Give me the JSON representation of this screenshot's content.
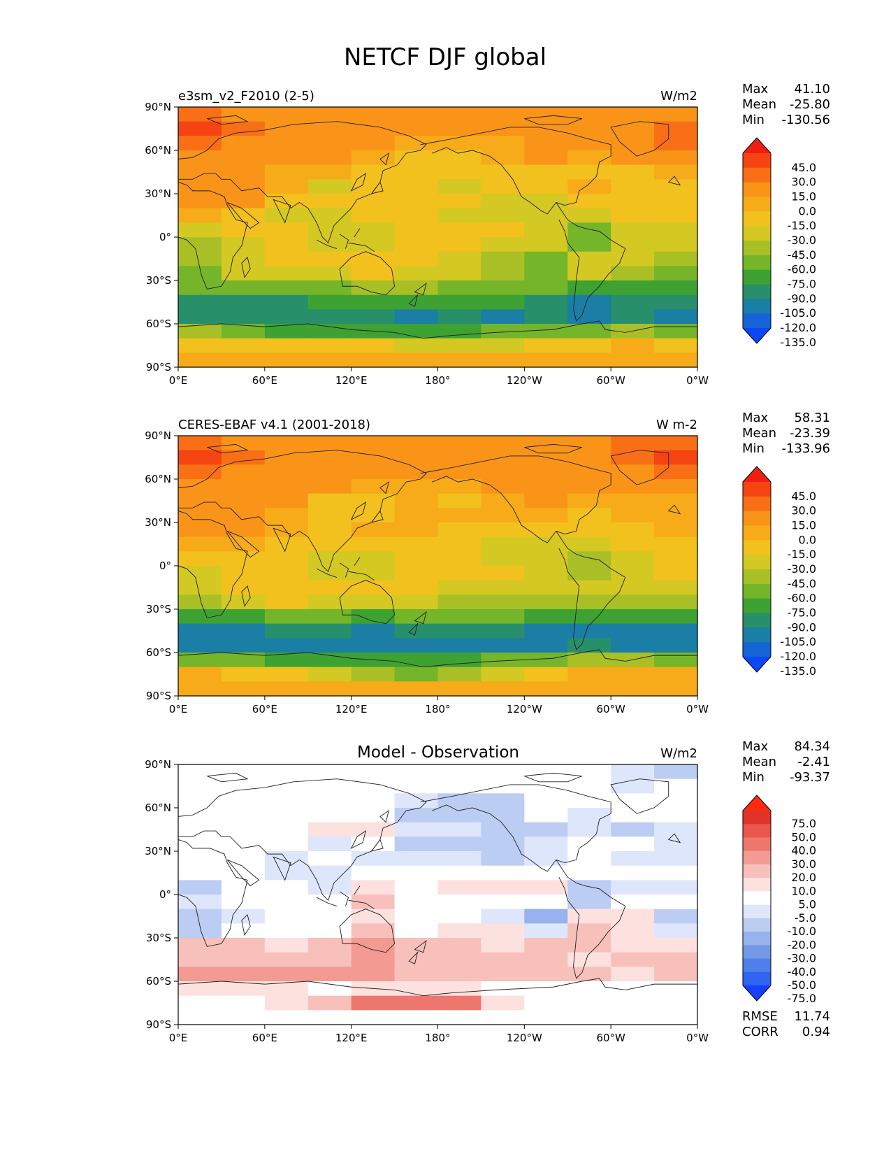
{
  "figure_title": "NETCF DJF global",
  "colors": {
    "seq": [
      "#0b47f5",
      "#1464d8",
      "#1b7ea5",
      "#27906a",
      "#3ea233",
      "#74b52a",
      "#a8c025",
      "#d4c822",
      "#f2c11e",
      "#f7ab18",
      "#fa9418",
      "#f96f15",
      "#f54412",
      "#ee1f10"
    ],
    "div": [
      "#1540ff",
      "#2f63f2",
      "#4f7fe8",
      "#7398e6",
      "#97b2ec",
      "#bccdf4",
      "#dde6fb",
      "#ffffff",
      "#fde1df",
      "#f8c0bb",
      "#f39a93",
      "#ee776d",
      "#e8564c",
      "#e2332a",
      "#ff2a10"
    ],
    "land_line": "#333333"
  },
  "x_ticks": [
    "0°E",
    "60°E",
    "120°E",
    "180°",
    "120°W",
    "60°W",
    "0°W"
  ],
  "y_ticks": [
    "90°N",
    "60°N",
    "30°N",
    "0°",
    "30°S",
    "60°S",
    "90°S"
  ],
  "panels": [
    {
      "id": "test",
      "left_title": "e3sm_v2_F2010 (2-5)",
      "center_title": "",
      "units": "W/m2",
      "stats": [
        [
          "Max",
          "41.10"
        ],
        [
          "Mean",
          "-25.80"
        ],
        [
          "Min",
          "-130.56"
        ]
      ],
      "colorbar_labels": [
        "45.0",
        "30.0",
        "15.0",
        "0.0",
        "-15.0",
        "-30.0",
        "-45.0",
        "-60.0",
        "-75.0",
        "-90.0",
        "-105.0",
        "-120.0",
        "-135.0"
      ],
      "palette": "seq",
      "field": {
        "lat": [
          85,
          75,
          65,
          55,
          45,
          35,
          25,
          15,
          5,
          -5,
          -15,
          -25,
          -35,
          -45,
          -55,
          -65,
          -75,
          -85
        ],
        "lon": [
          15,
          45,
          75,
          105,
          135,
          165,
          195,
          225,
          255,
          285,
          315,
          345
        ],
        "values": [
          [
            15,
            8,
            5,
            5,
            8,
            8,
            8,
            5,
            5,
            5,
            5,
            10
          ],
          [
            30,
            15,
            5,
            5,
            8,
            5,
            5,
            5,
            5,
            5,
            10,
            25
          ],
          [
            15,
            10,
            5,
            5,
            5,
            -5,
            -5,
            -10,
            5,
            5,
            10,
            15
          ],
          [
            5,
            0,
            0,
            0,
            -10,
            -20,
            -20,
            -15,
            5,
            -5,
            0,
            0
          ],
          [
            0,
            0,
            -5,
            -15,
            -25,
            -25,
            -30,
            -25,
            -20,
            -20,
            -30,
            -15
          ],
          [
            10,
            5,
            -10,
            -40,
            -30,
            -30,
            -35,
            -30,
            -25,
            -15,
            -20,
            -20
          ],
          [
            5,
            0,
            -20,
            -25,
            -25,
            -25,
            -30,
            -35,
            -35,
            -20,
            -30,
            -20
          ],
          [
            -5,
            -20,
            -35,
            -40,
            -25,
            -25,
            -35,
            -35,
            -40,
            -45,
            -30,
            -25
          ],
          [
            -40,
            -20,
            -25,
            -45,
            -40,
            -25,
            -20,
            -30,
            -35,
            -65,
            -45,
            -40
          ],
          [
            -50,
            -35,
            -25,
            -40,
            -35,
            -30,
            -30,
            -35,
            -45,
            -65,
            -35,
            -35
          ],
          [
            -60,
            -40,
            -30,
            -25,
            -25,
            -30,
            -40,
            -50,
            -70,
            -40,
            -35,
            -60
          ],
          [
            -65,
            -40,
            -35,
            -40,
            -25,
            -40,
            -45,
            -50,
            -65,
            -45,
            -55,
            -65
          ],
          [
            -75,
            -70,
            -70,
            -65,
            -55,
            -60,
            -65,
            -70,
            -70,
            -80,
            -85,
            -80
          ],
          [
            -100,
            -95,
            -95,
            -90,
            -90,
            -90,
            -85,
            -90,
            -95,
            -110,
            -100,
            -100
          ],
          [
            -105,
            -100,
            -105,
            -105,
            -100,
            -110,
            -105,
            -110,
            -105,
            -115,
            -105,
            -115
          ],
          [
            -60,
            -70,
            -80,
            -85,
            -85,
            -85,
            -80,
            -75,
            -70,
            -65,
            -55,
            -65
          ],
          [
            -20,
            -20,
            -25,
            -30,
            -30,
            -35,
            -45,
            -40,
            -25,
            -20,
            -15,
            -20
          ],
          [
            -5,
            -5,
            -10,
            -10,
            -10,
            -10,
            -10,
            -10,
            -10,
            -10,
            -5,
            -5
          ]
        ]
      }
    },
    {
      "id": "ref",
      "left_title": "CERES-EBAF v4.1 (2001-2018)",
      "center_title": "",
      "units": "W m-2",
      "stats": [
        [
          "Max",
          "58.31"
        ],
        [
          "Mean",
          "-23.39"
        ],
        [
          "Min",
          "-133.96"
        ]
      ],
      "colorbar_labels": [
        "45.0",
        "30.0",
        "15.0",
        "0.0",
        "-15.0",
        "-30.0",
        "-45.0",
        "-60.0",
        "-75.0",
        "-90.0",
        "-105.0",
        "-120.0",
        "-135.0"
      ],
      "palette": "seq",
      "field": {
        "lat": [
          85,
          75,
          65,
          55,
          45,
          35,
          25,
          15,
          5,
          -5,
          -15,
          -25,
          -35,
          -45,
          -55,
          -65,
          -75,
          -85
        ],
        "lon": [
          15,
          45,
          75,
          105,
          135,
          165,
          195,
          225,
          255,
          285,
          315,
          345
        ],
        "values": [
          [
            20,
            10,
            8,
            5,
            8,
            8,
            8,
            8,
            5,
            5,
            15,
            25
          ],
          [
            30,
            15,
            8,
            5,
            8,
            8,
            8,
            8,
            5,
            8,
            20,
            30
          ],
          [
            15,
            10,
            5,
            5,
            5,
            5,
            8,
            5,
            10,
            5,
            10,
            15
          ],
          [
            5,
            5,
            5,
            5,
            -5,
            -5,
            -5,
            0,
            10,
            5,
            5,
            5
          ],
          [
            0,
            0,
            0,
            -20,
            -30,
            -15,
            -20,
            -10,
            0,
            -10,
            -15,
            -5
          ],
          [
            10,
            5,
            -5,
            -25,
            -30,
            -10,
            -15,
            -10,
            -15,
            -20,
            -15,
            -10
          ],
          [
            5,
            0,
            -10,
            -20,
            -15,
            -15,
            -20,
            -20,
            -25,
            -20,
            -20,
            -10
          ],
          [
            -5,
            -15,
            -25,
            -30,
            -25,
            -25,
            -30,
            -35,
            -40,
            -40,
            -30,
            -20
          ],
          [
            -25,
            -20,
            -20,
            -35,
            -45,
            -30,
            -25,
            -35,
            -45,
            -50,
            -35,
            -30
          ],
          [
            -40,
            -30,
            -25,
            -40,
            -45,
            -30,
            -25,
            -30,
            -40,
            -50,
            -35,
            -30
          ],
          [
            -45,
            -30,
            -25,
            -25,
            -30,
            -30,
            -35,
            -40,
            -45,
            -45,
            -40,
            -45
          ],
          [
            -50,
            -40,
            -30,
            -40,
            -35,
            -40,
            -50,
            -55,
            -55,
            -55,
            -60,
            -55
          ],
          [
            -85,
            -80,
            -75,
            -75,
            -80,
            -75,
            -75,
            -75,
            -80,
            -90,
            -90,
            -85
          ],
          [
            -115,
            -110,
            -105,
            -105,
            -110,
            -105,
            -100,
            -105,
            -110,
            -115,
            -110,
            -115
          ],
          [
            -110,
            -115,
            -115,
            -115,
            -120,
            -120,
            -115,
            -110,
            -110,
            -105,
            -110,
            -115
          ],
          [
            -65,
            -75,
            -85,
            -85,
            -90,
            -90,
            -85,
            -75,
            -70,
            -60,
            -55,
            -65
          ],
          [
            -10,
            -20,
            -30,
            -45,
            -60,
            -70,
            -55,
            -35,
            -20,
            -15,
            -10,
            -15
          ],
          [
            -5,
            -5,
            -5,
            -5,
            -5,
            -5,
            -5,
            -5,
            -5,
            -5,
            -5,
            -5
          ]
        ]
      }
    },
    {
      "id": "diff",
      "left_title": "",
      "center_title": "Model - Observation",
      "units": "W/m2",
      "stats": [
        [
          "Max",
          "84.34"
        ],
        [
          "Mean",
          "-2.41"
        ],
        [
          "Min",
          "-93.37"
        ]
      ],
      "colorbar_labels": [
        "75.0",
        "50.0",
        "40.0",
        "30.0",
        "20.0",
        "10.0",
        "5.0",
        "-5.0",
        "-10.0",
        "-20.0",
        "-30.0",
        "-40.0",
        "-50.0",
        "-75.0"
      ],
      "palette": "div",
      "extra_stats": [
        [
          "RMSE",
          "11.74"
        ],
        [
          "CORR",
          "0.94"
        ]
      ],
      "field": {
        "lat": [
          85,
          75,
          65,
          55,
          45,
          35,
          25,
          15,
          5,
          -5,
          -15,
          -25,
          -35,
          -45,
          -55,
          -65,
          -75,
          -85
        ],
        "lon": [
          15,
          45,
          75,
          105,
          135,
          165,
          195,
          225,
          255,
          285,
          315,
          345
        ],
        "values": [
          [
            -5,
            -2,
            -3,
            0,
            0,
            0,
            0,
            -3,
            0,
            0,
            -8,
            -12
          ],
          [
            0,
            0,
            -3,
            0,
            0,
            -3,
            -3,
            -3,
            0,
            -3,
            -10,
            -5
          ],
          [
            0,
            0,
            0,
            0,
            0,
            -8,
            -12,
            -12,
            -5,
            0,
            0,
            0
          ],
          [
            0,
            -5,
            -5,
            -5,
            -5,
            -15,
            -15,
            -15,
            -5,
            -10,
            -5,
            -5
          ],
          [
            0,
            0,
            -5,
            5,
            5,
            -10,
            -10,
            -15,
            -20,
            -10,
            -15,
            -10
          ],
          [
            0,
            0,
            -5,
            -10,
            0,
            -15,
            -20,
            -20,
            -10,
            0,
            -5,
            -10
          ],
          [
            0,
            0,
            -10,
            -5,
            -10,
            -10,
            -10,
            -15,
            -10,
            0,
            -10,
            -10
          ],
          [
            0,
            -5,
            -10,
            -10,
            0,
            0,
            -5,
            0,
            0,
            -5,
            0,
            -5
          ],
          [
            -15,
            0,
            -5,
            -10,
            5,
            0,
            5,
            5,
            5,
            -15,
            -10,
            -10
          ],
          [
            -10,
            -5,
            0,
            0,
            10,
            0,
            -5,
            -5,
            -5,
            -15,
            0,
            -5
          ],
          [
            -15,
            -10,
            -5,
            0,
            5,
            0,
            -5,
            -10,
            -25,
            5,
            5,
            -15
          ],
          [
            -15,
            0,
            -5,
            0,
            10,
            0,
            5,
            5,
            -10,
            10,
            5,
            -10
          ],
          [
            10,
            10,
            5,
            10,
            25,
            15,
            10,
            5,
            10,
            10,
            5,
            5
          ],
          [
            15,
            15,
            10,
            15,
            20,
            15,
            15,
            15,
            15,
            5,
            10,
            15
          ],
          [
            20,
            20,
            20,
            20,
            20,
            15,
            15,
            15,
            15,
            10,
            5,
            10
          ],
          [
            5,
            5,
            5,
            0,
            5,
            5,
            5,
            0,
            0,
            -5,
            0,
            0
          ],
          [
            -5,
            0,
            5,
            15,
            30,
            35,
            30,
            5,
            -5,
            -5,
            0,
            -5
          ],
          [
            0,
            0,
            0,
            0,
            0,
            0,
            0,
            0,
            0,
            0,
            0,
            0
          ]
        ]
      }
    }
  ]
}
